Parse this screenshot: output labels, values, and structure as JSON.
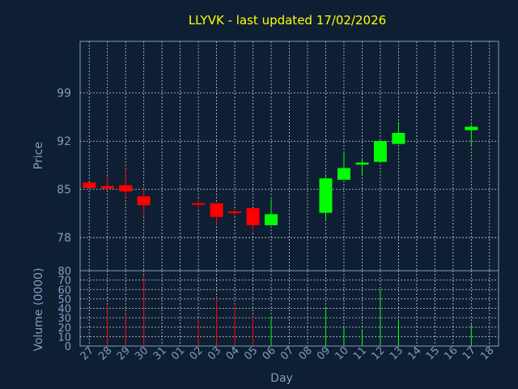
{
  "chart_data": {
    "type": "candlestick",
    "title": "LLYVK - last updated 17/02/2026",
    "ylabel": "Price",
    "y2label": "Volume (0000)",
    "xlabel": "Day",
    "categories": [
      "27",
      "28",
      "29",
      "30",
      "31",
      "01",
      "02",
      "03",
      "04",
      "05",
      "06",
      "07",
      "08",
      "09",
      "10",
      "11",
      "12",
      "13",
      "14",
      "15",
      "16",
      "17",
      "18"
    ],
    "price_ticks": [
      78,
      85,
      92,
      99
    ],
    "ylim": [
      73.2,
      106.5
    ],
    "volume_ticks": [
      0,
      10,
      20,
      30,
      40,
      50,
      60,
      70,
      80
    ],
    "volume_ylim": [
      0,
      80
    ],
    "grid": true,
    "up_color": "#00ff00",
    "down_color": "#ff0000",
    "candles": [
      {
        "day": "27",
        "open": 86.0,
        "high": 86.0,
        "low": 85.2,
        "close": 85.2,
        "volume": 0
      },
      {
        "day": "28",
        "open": 85.5,
        "high": 87.0,
        "low": 84.8,
        "close": 85.1,
        "volume": 43
      },
      {
        "day": "29",
        "open": 85.6,
        "high": 88.0,
        "low": 83.8,
        "close": 84.7,
        "volume": 34
      },
      {
        "day": "30",
        "open": 84.0,
        "high": 85.2,
        "low": 81.2,
        "close": 82.7,
        "volume": 75
      },
      {
        "day": "02",
        "open": 83.0,
        "high": 83.6,
        "low": 82.2,
        "close": 82.8,
        "volume": 29
      },
      {
        "day": "03",
        "open": 83.0,
        "high": 83.0,
        "low": 80.0,
        "close": 81.0,
        "volume": 51
      },
      {
        "day": "04",
        "open": 81.8,
        "high": 82.3,
        "low": 81.1,
        "close": 81.6,
        "volume": 43
      },
      {
        "day": "05",
        "open": 82.3,
        "high": 82.3,
        "low": 78.8,
        "close": 79.8,
        "volume": 31
      },
      {
        "day": "06",
        "open": 79.8,
        "high": 83.6,
        "low": 79.8,
        "close": 81.4,
        "volume": 31
      },
      {
        "day": "09",
        "open": 81.6,
        "high": 87.0,
        "low": 80.4,
        "close": 86.6,
        "volume": 41
      },
      {
        "day": "10",
        "open": 86.4,
        "high": 90.5,
        "low": 86.4,
        "close": 88.1,
        "volume": 20
      },
      {
        "day": "11",
        "open": 88.6,
        "high": 89.5,
        "low": 87.0,
        "close": 88.9,
        "volume": 18
      },
      {
        "day": "12",
        "open": 89.0,
        "high": 92.1,
        "low": 89.0,
        "close": 92.0,
        "volume": 60
      },
      {
        "day": "13",
        "open": 91.6,
        "high": 94.8,
        "low": 91.6,
        "close": 93.2,
        "volume": 28
      },
      {
        "day": "17",
        "open": 93.6,
        "high": 94.4,
        "low": 91.2,
        "close": 94.1,
        "volume": 23
      }
    ]
  }
}
